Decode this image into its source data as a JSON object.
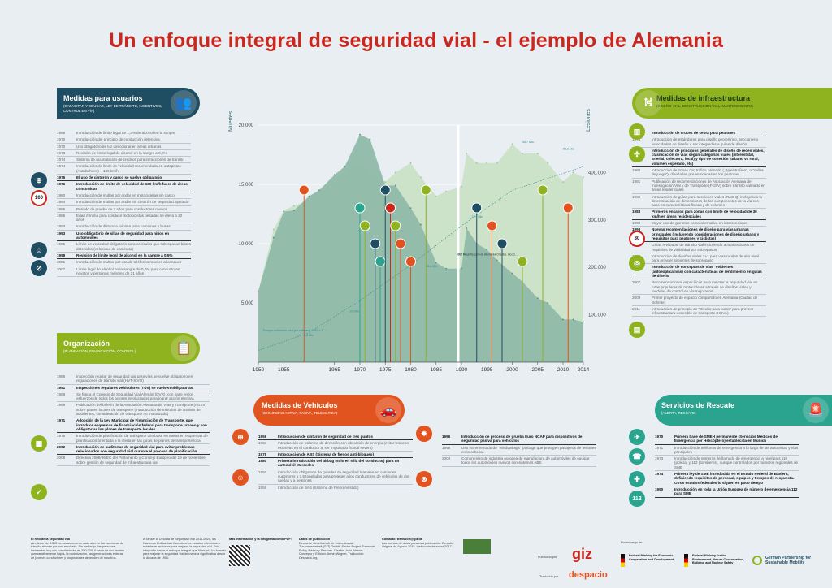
{
  "title": "Un enfoque integral de seguridad vial - el ejemplo de Alemania",
  "colors": {
    "usuarios": "#1f4e63",
    "infra": "#8fb21f",
    "org": "#8fb21f",
    "vehiculos": "#e2541f",
    "rescate": "#2aa48e",
    "accent": "#c8281e"
  },
  "panels": {
    "usuarios": {
      "title": "Medidas para usuarios",
      "subtitle": "(CAPACITAR Y EDUCAR, LEY DE TRÁNSITO, INCENTIVOS, CONTROL EN VÍA)",
      "icon": "people-icon"
    },
    "infra": {
      "title": "Medidas de infraestructura",
      "subtitle": "(DISEÑO VIAL, CONSTRUCCIÓN VIAL, MANTENIMIENTO)",
      "icon": "road-icon"
    },
    "org": {
      "title": "Organización",
      "subtitle": "(PLANEACIÓN, FINANCIACIÓN, CONTROL)",
      "icon": "clipboard-icon"
    },
    "vehiculos": {
      "title": "Medidas de Vehículos",
      "subtitle": "(SEGURIDAD ACTIVA, PASIVA, TELEMÁTICA)",
      "icon": "cars-icon"
    },
    "rescate": {
      "title": "Servicios de Rescate",
      "subtitle": "(ALERTA, RESCATE)",
      "icon": "siren-icon"
    }
  },
  "usuarios_items": [
    {
      "year": "1966",
      "text": "Introducción de límite legal de 1,3% de alcohol en la sangre"
    },
    {
      "year": "1970",
      "text": "Introducción del principio de conducción defensiva"
    },
    {
      "year": "1970",
      "text": "Uso obligatorio de luz direccional en áreas urbanas"
    },
    {
      "year": "1973",
      "text": "Revisión de límite legal de alcohol en la sangre a 0,8%"
    },
    {
      "year": "1974",
      "text": "Sistema de acumulación de créditos para infracciones de tránsito"
    },
    {
      "year": "1974",
      "text": "Introducción de límite de velocidad recomendado en autopistas (Autobahnen) – 130 km/h"
    },
    {
      "year": "1975",
      "text": "El uso de cinturón y casco se vuelve obligatorio",
      "highlight": true
    },
    {
      "year": "1976",
      "text": "Introducción de límite de velocidad de 100 km/h fuera de áreas construidas",
      "highlight": true
    },
    {
      "year": "1980",
      "text": "Introducción de multas por andar en motocicletas sin casco"
    },
    {
      "year": "1984",
      "text": "Introducción de multas por andar sin cinturón de seguridad ajustado"
    },
    {
      "year": "1986",
      "text": "Periodo de prueba de 2 años para conductores nuevos"
    },
    {
      "year": "1986",
      "text": "Edad mínima para conducir motocicletas pesadas se eleva a 20 años"
    },
    {
      "year": "1993",
      "text": "Introducción de distancia mínima para camiones y buses"
    },
    {
      "year": "1993",
      "text": "Uso obligatorio de sillas de seguridad para niños en automóviles",
      "highlight": true
    },
    {
      "year": "1995",
      "text": "Límite de velocidad obligatorio para vehículos que sobrepasan buses detenidos (velocidad de caminata)"
    },
    {
      "year": "1998",
      "text": "Revisión de límite legal de alcohol en la sangre a 0,5%",
      "highlight": true
    },
    {
      "year": "2001",
      "text": "Introducción de multas por uso de teléfonos móviles al conducir"
    },
    {
      "year": "2007",
      "text": "Límite legal de alcohol en la sangre de 0,0% para conductores novatos y personas menores de 21 años"
    }
  ],
  "infra_items": [
    {
      "year": "1964",
      "text": "Introducción de cruces de cebra para peatones",
      "highlight": true
    },
    {
      "year": "1973",
      "text": "Introducción de estándares para diseño geométrico, secciones y velocidades de diseño a ser integradas a guías de diseño"
    },
    {
      "year": "1977",
      "text": "Introducción de principios generales de diseño de redes viales, clasificación de vías según categorías viales (interestatal, arterial, colectora, local) y tipo de conexión (urbano vs rural, volumen esperado, etc)",
      "highlight": true
    },
    {
      "year": "1980",
      "text": "Introducción de zonas con tráfico calmado („Spielstraßen\", o \"calles de juego\"), diseñadas por enfocadas en los peatones"
    },
    {
      "year": "1981",
      "text": "Publicación de recomendaciones de Asociación Alemana de Investigación Vial y de Transporte (FGSV) sobre tránsito calmado en áreas residenciales"
    },
    {
      "year": "1982",
      "text": "Introducción de guías para secciones viales (RAS-Q) incluyendo la determinación de dimensiones de los componentes de la vía con base en características físicas y de volumen"
    },
    {
      "year": "1983",
      "text": "Primeros ensayos para zonas con límite de velocidad de 30 km/h en áreas residenciales",
      "highlight": true
    },
    {
      "year": "1990",
      "text": "Mayor uso de glorietas como alternativa en intersecciones"
    },
    {
      "year": "1993",
      "text": "Nuevas recomendaciones de diseño para vías urbanas principales (incluyendo consideraciones de diseño urbano y requisitos para peatones y ciclistas)",
      "highlight": true
    },
    {
      "year": "1995",
      "text": "Guías revisadas de tránsito vial incluyendo actualizaciones de requisitos de visibilidad por sobrepasos"
    },
    {
      "year": "1996",
      "text": "Introducción de diseños viales 2+1 para vías rurales de alto nivel para proveer simientes de sobrepaso"
    },
    {
      "year": "2006",
      "text": "Introducción de conceptos de vías \"evidentes\" (autoexplicativas) con características de rendimiento en guías de diseño",
      "highlight": true
    },
    {
      "year": "2007",
      "text": "Recomendaciones específicas para mejorar la seguridad vial en rutas populares de motocicletas a través de diseños viales y medidas de control en vía mejorados"
    },
    {
      "year": "2009",
      "text": "Primer proyecto de espacio compartido en Alemania (Ciudad de Bohmte)"
    },
    {
      "year": "2011",
      "text": "Introducción de principio de \"Diseño para todos\" para proveer infraestructura accesible de transporte (HBVA)"
    }
  ],
  "org_items": [
    {
      "year": "1956",
      "text": "Inspección regular de seguridad vial para vías se vuelve obligatorio en regulaciones de tránsito vial (HVT-StVO)"
    },
    {
      "year": "1951",
      "text": "Inspecciones regulares vehiculares (TÜV) se vuelven obligatorias",
      "highlight": true
    },
    {
      "year": "1969",
      "text": "Se funda el Consejo de Seguridad Vial Alemán (DVR), con base en los esfuerzos de todos los actores involucrados para lograr acción efectiva"
    },
    {
      "year": "1969",
      "text": "Publicación del boletín de la Asociación Alemana de Vías y Transporte (FGSV) sobre planes locales de transporte (Introducción de métodos de análisis de accidentes, consideración de transporte no motorizado)"
    },
    {
      "year": "1971",
      "text": "Adopción de la Ley Municipal de Financiación de Transporte, que introduce esquemas de financiación federal para transporte urbano y son obligatorias los planes de transporte locales",
      "highlight": true
    },
    {
      "year": "1975",
      "text": "Introducción de planificación de transporte con base en metas en esquemas de planificación orientada a la oferta en las guías de planes de transporte local"
    },
    {
      "year": "2002",
      "text": "Introducción de auditorías de seguridad vial para evitar problemas relacionados con seguridad vial durante el proceso de planificación",
      "highlight": true
    },
    {
      "year": "2008",
      "text": "Directiva 2008/96/EC del Parlamento y Consejo Europeo del 19 de noviembre sobre gestión de seguridad de infraestructura vial"
    }
  ],
  "veh_col1": [
    {
      "year": "1959",
      "text": "Introducción de cinturón de seguridad de tres puntos",
      "highlight": true
    },
    {
      "year": "1963",
      "text": "Introducción de columna de dirección con absorción de energía (evitar lesiones escisivas en el conductor al ser impulsado frontal severo)"
    },
    {
      "year": "1978",
      "text": "Introducción de ABS (Sistema de frenos anti-bloqueo)",
      "highlight": true
    },
    {
      "year": "1980",
      "text": "Primera introducción del airbag (solo en silla del conductor) para un automóvil Mercedes",
      "highlight": true
    },
    {
      "year": "1950",
      "text": "Introducción obligatoria de guardas de seguridad laterales en camiones superiores a 3,5 toneladas para proteger a los conductores de vehículos de dos ruedas y a peatones"
    },
    {
      "year": "1959",
      "text": "Introducción de BAS (Sistema de Freno Asistido)"
    }
  ],
  "veh_col2": [
    {
      "year": "1996",
      "text": "Introducción de proceso de prueba Euro NCAP para dispositivos de seguridad pasiva para vehículos",
      "highlight": true
    },
    {
      "year": "1998",
      "text": "Uso incrementado de \"windowbags\" (airbags que protegen pasajeros de lesiones en la cabeza)"
    },
    {
      "year": "2004",
      "text": "Compromiso de industria europea de manufactura de automóviles de equipar todos los automóviles nuevos con sistemas ABS"
    }
  ],
  "rescate_items": [
    {
      "year": "1970",
      "text": "Primera base de SMEH permanente (Servicios Médicos de Emergencia por Helicóptero) establecida en Múnich",
      "highlight": true
    },
    {
      "year": "1971",
      "text": "Introducción de teléfonos de emergencia a lo largo de las autopistas y vías principales"
    },
    {
      "year": "1973",
      "text": "Introducción de números de llamada de emergencia a nivel país 110 (policía) y 112 (bomberos), aunque controlados por números regionales de SME"
    },
    {
      "year": "1974",
      "text": "Primera ley de SME introducida en el Estado Federal de Baviera, definiendo requisitos de personal, equipos y tiempos de respuesta. Otros estados federales lo siguen en poco tiempo",
      "highlight": true
    },
    {
      "year": "1990",
      "text": "Introducción en toda la Unión Europea de número de emergencia 112 para SME",
      "highlight": true
    }
  ],
  "chart_data": {
    "type": "area",
    "title": "",
    "x": [
      1950,
      1953,
      1955,
      1957,
      1960,
      1962,
      1965,
      1967,
      1970,
      1972,
      1975,
      1977,
      1980,
      1982,
      1985,
      1987,
      1990,
      1991,
      1993,
      1995,
      1997,
      2000,
      2002,
      2005,
      2007,
      2010,
      2012,
      2014
    ],
    "series": [
      {
        "name": "Muertes",
        "axis": "left",
        "values": [
          6000,
          10500,
          12700,
          12800,
          14000,
          14500,
          15800,
          16500,
          19200,
          18800,
          14900,
          14900,
          13000,
          11600,
          8400,
          7900,
          7900,
          11300,
          10000,
          9500,
          8600,
          7500,
          6800,
          5400,
          5000,
          3600,
          3600,
          3400
        ]
      },
      {
        "name": "Lesiones",
        "axis": "right",
        "values": [
          150000,
          280000,
          320000,
          330000,
          340000,
          360000,
          380000,
          400000,
          420000,
          400000,
          380000,
          400000,
          420000,
          390000,
          350000,
          360000,
          370000,
          440000,
          420000,
          420000,
          420000,
          460000,
          440000,
          440000,
          420000,
          380000,
          400000,
          390000
        ]
      }
    ],
    "ylabel_left": "Muertes",
    "ylabel_right": "Lesiones",
    "yticks_left": [
      "5.000",
      "10.000",
      "15.000",
      "20.000"
    ],
    "yticks_right": [
      "100.000",
      "200.000",
      "300.000",
      "400.000"
    ],
    "ylim_left": [
      0,
      20000
    ],
    "ylim_right": [
      0,
      500000
    ],
    "xticks": [
      "1950",
      "1955",
      "1965",
      "1970",
      "1975",
      "1980",
      "1985",
      "1990",
      "1995",
      "2000",
      "2005",
      "2010",
      "2014"
    ],
    "annotations": [
      "Parque automotor total (en millones) 1950 + 1 millones",
      "4,5 Mio",
      "9,0 Mio",
      "16,8 Mio",
      "27,1 Mio",
      "35,7 Mio",
      "53,3 Mio",
      "54,7 Mio",
      "1990 Reunificación de Alemania Oriental, Occidental: datos de seguridad vial solo para Alemania Occidental hasta 1990"
    ]
  },
  "footer": {
    "col1_title": "El reto de la seguridad vial",
    "col1_text": "Alrededor de 3.500 personas mueren cada año en las carreteras de tránsito alemán por mal resultado. Sin embargo, las personas lesionadas hoy día son alrededor de 390.000. A partir de sus niveles comparativamente bajos, la motorización, las generaciones enteras de jóvenes conductores y los peatones dependen de nosotros.",
    "col2_text": "Al lanzar la Década de Seguridad Vial 2011-2020, las Naciones Unidas han llamado a los estados miembros a establecer acciones para mejorar la seguridad vial. Esta infografía ilustra el enfoque integral que Alemania ha tomado para mejorar la seguridad vial de manera significativa desde la década de 1950.",
    "col3_title": "Más información y la infografía como PDF:",
    "col4_title": "Datos de publicación",
    "col4_text": "Deutsche Gesellschaft für Internationale Zusammenarbeit (GIZ) GmbH. Sector Project Transport Policy Advisory Services. Diseño: Julia Wassei. Concepto y Edición: Armin Wagner. Traducción: Despacio.org",
    "col5_title": "Contacto: transport@giz.de",
    "col5_text": "Las fuentes de datos para esta publicación: Destatis. Original de Agosto 2015, traducción de enero 2017.",
    "publicado": "Publicado por",
    "encargo": "Por encargo de:",
    "traducido": "Traducido por",
    "giz": "giz",
    "despacio": "despacio",
    "bmz": "Federal Ministry for Economic Cooperation and Development",
    "bmub": "Federal Ministry for the Environment, Nature Conservation, Building and Nuclear Safety",
    "gpsm": "German Partnership for Sustainable Mobility"
  }
}
